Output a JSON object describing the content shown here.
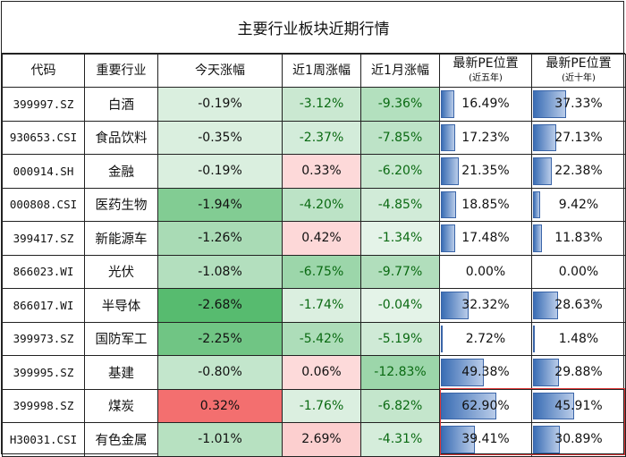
{
  "title": "主要行业板块近期行情",
  "headers": {
    "code": "代码",
    "industry": "重要行业",
    "today": "今天涨幅",
    "week": "近1周涨幅",
    "month": "近1月涨幅",
    "pe5": "最新PE位置",
    "pe5_sub": "(近五年)",
    "pe10": "最新PE位置",
    "pe10_sub": "(近十年)"
  },
  "rows": [
    {
      "code": "399997.SZ",
      "name": "白酒",
      "today": "-0.19%",
      "week": "-3.12%",
      "month": "-9.36%",
      "pe5": "16.49%",
      "pe10": "37.33%"
    },
    {
      "code": "930653.CSI",
      "name": "食品饮料",
      "today": "-0.35%",
      "week": "-2.37%",
      "month": "-7.85%",
      "pe5": "17.23%",
      "pe10": "27.13%"
    },
    {
      "code": "000914.SH",
      "name": "金融",
      "today": "-0.19%",
      "week": "0.33%",
      "month": "-6.20%",
      "pe5": "21.35%",
      "pe10": "22.38%"
    },
    {
      "code": "000808.CSI",
      "name": "医药生物",
      "today": "-1.94%",
      "week": "-4.20%",
      "month": "-4.85%",
      "pe5": "18.85%",
      "pe10": "9.42%"
    },
    {
      "code": "399417.SZ",
      "name": "新能源车",
      "today": "-1.26%",
      "week": "0.42%",
      "month": "-1.34%",
      "pe5": "17.48%",
      "pe10": "11.83%"
    },
    {
      "code": "866023.WI",
      "name": "光伏",
      "today": "-1.08%",
      "week": "-6.75%",
      "month": "-9.77%",
      "pe5": "0.00%",
      "pe10": "0.00%"
    },
    {
      "code": "866017.WI",
      "name": "半导体",
      "today": "-2.68%",
      "week": "-1.74%",
      "month": "-0.04%",
      "pe5": "32.32%",
      "pe10": "28.63%"
    },
    {
      "code": "399973.SZ",
      "name": "国防军工",
      "today": "-2.25%",
      "week": "-5.42%",
      "month": "-5.19%",
      "pe5": "2.72%",
      "pe10": "1.48%"
    },
    {
      "code": "399995.SZ",
      "name": "基建",
      "today": "-0.80%",
      "week": "0.06%",
      "month": "-12.83%",
      "pe5": "49.38%",
      "pe10": "29.88%"
    },
    {
      "code": "399998.SZ",
      "name": "煤炭",
      "today": "0.32%",
      "week": "-1.76%",
      "month": "-6.82%",
      "pe5": "62.90%",
      "pe10": "45.91%"
    },
    {
      "code": "H30031.CSI",
      "name": "有色金属",
      "today": "-1.01%",
      "week": "2.69%",
      "month": "-4.31%",
      "pe5": "39.41%",
      "pe10": "30.89%"
    }
  ],
  "colors": {
    "neg_scale": [
      "#f1f8f3",
      "#57bb6f"
    ],
    "pos_scale": [
      "#fddada",
      "#f36f6f"
    ],
    "pe_bar": "#3a6db4",
    "highlight_border": "#e03a3a",
    "negative_text": "#0a6a12"
  }
}
